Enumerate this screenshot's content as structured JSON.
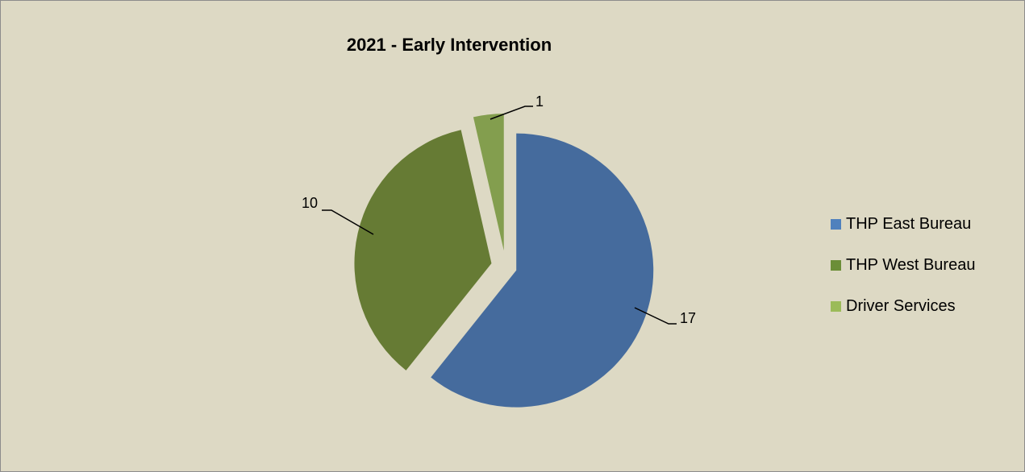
{
  "chart_data": {
    "type": "pie",
    "title": "2021 - Early Intervention",
    "categories": [
      "THP East Bureau",
      "THP West Bureau",
      "Driver Services"
    ],
    "values": [
      17,
      10,
      1
    ],
    "colors": [
      "#456b9d",
      "#667b34",
      "#839e4e"
    ],
    "exploded": true,
    "legend_position": "right",
    "data_labels": [
      "17",
      "10",
      "1"
    ]
  },
  "legend": {
    "colors": [
      "#4f81bd",
      "#6b8e37",
      "#9bbb59"
    ]
  }
}
